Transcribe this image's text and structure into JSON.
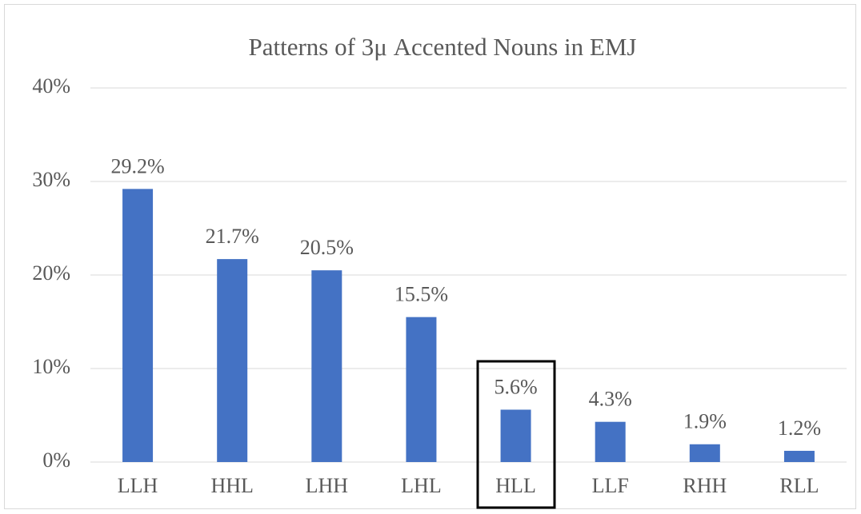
{
  "chart_data": {
    "type": "bar",
    "title": "Patterns of 3μ Accented Nouns in EMJ",
    "categories": [
      "LLH",
      "HHL",
      "LHH",
      "LHL",
      "HLL",
      "LLF",
      "RHH",
      "RLL"
    ],
    "values": [
      29.2,
      21.7,
      20.5,
      15.5,
      5.6,
      4.3,
      1.9,
      1.2
    ],
    "value_labels": [
      "29.2%",
      "21.7%",
      "20.5%",
      "15.5%",
      "5.6%",
      "4.3%",
      "1.9%",
      "1.2%"
    ],
    "color": "#4472c4",
    "ylim": [
      0,
      40
    ],
    "yticks": [
      {
        "value": 0,
        "label": "0%"
      },
      {
        "value": 10,
        "label": "10%"
      },
      {
        "value": 20,
        "label": "20%"
      },
      {
        "value": 30,
        "label": "30%"
      },
      {
        "value": 40,
        "label": "40%"
      }
    ],
    "grid": true
  }
}
